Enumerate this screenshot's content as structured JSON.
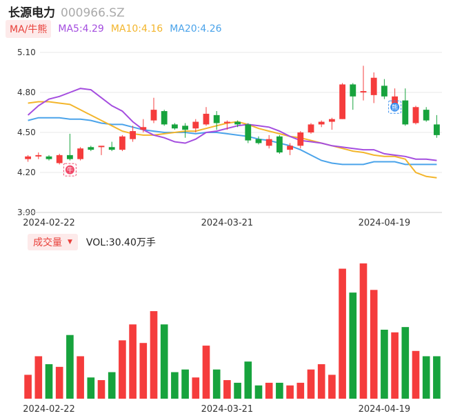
{
  "header": {
    "stock_name": "长源电力",
    "stock_code": "000966.SZ"
  },
  "ma_legend": {
    "tag": "MA/牛熊",
    "items": [
      {
        "label": "MA5:4.29",
        "color": "#a44ddf"
      },
      {
        "label": "MA10:4.16",
        "color": "#f3b52b"
      },
      {
        "label": "MA20:4.26",
        "color": "#4aa3ea"
      }
    ]
  },
  "volume_legend": {
    "tag": "成交量",
    "value": "VOL:30.40万手"
  },
  "colors": {
    "up": "#f53c3c",
    "down": "#17a33d",
    "grid": "#e9e9e9",
    "axis_text": "#333333"
  },
  "markers": {
    "buy_icon": "牛",
    "sell_icon": "熊"
  },
  "chart_data": [
    {
      "type": "candlestick",
      "y_ticks": [
        "5.10",
        "4.80",
        "4.50",
        "4.20",
        "3.90"
      ],
      "ylim": [
        3.9,
        5.1
      ],
      "x_tick_labels": [
        {
          "label": "2024-02-22",
          "index": 2
        },
        {
          "label": "2024-03-21",
          "index": 19
        },
        {
          "label": "2024-04-19",
          "index": 34
        }
      ],
      "candles": [
        {
          "o": 4.3,
          "c": 4.32,
          "h": 4.33,
          "l": 4.28
        },
        {
          "o": 4.32,
          "c": 4.33,
          "h": 4.35,
          "l": 4.3
        },
        {
          "o": 4.32,
          "c": 4.3,
          "h": 4.33,
          "l": 4.29
        },
        {
          "o": 4.27,
          "c": 4.33,
          "h": 4.34,
          "l": 4.26
        },
        {
          "o": 4.33,
          "c": 4.3,
          "h": 4.49,
          "l": 4.29
        },
        {
          "o": 4.3,
          "c": 4.38,
          "h": 4.39,
          "l": 4.29
        },
        {
          "o": 4.39,
          "c": 4.37,
          "h": 4.4,
          "l": 4.36
        },
        {
          "o": 4.39,
          "c": 4.4,
          "h": 4.4,
          "l": 4.33
        },
        {
          "o": 4.39,
          "c": 4.37,
          "h": 4.43,
          "l": 4.36
        },
        {
          "o": 4.37,
          "c": 4.47,
          "h": 4.48,
          "l": 4.36
        },
        {
          "o": 4.45,
          "c": 4.51,
          "h": 4.55,
          "l": 4.43
        },
        {
          "o": 4.52,
          "c": 4.54,
          "h": 4.6,
          "l": 4.5
        },
        {
          "o": 4.59,
          "c": 4.67,
          "h": 4.76,
          "l": 4.57
        },
        {
          "o": 4.66,
          "c": 4.56,
          "h": 4.67,
          "l": 4.55
        },
        {
          "o": 4.56,
          "c": 4.53,
          "h": 4.57,
          "l": 4.52
        },
        {
          "o": 4.55,
          "c": 4.52,
          "h": 4.57,
          "l": 4.46
        },
        {
          "o": 4.53,
          "c": 4.58,
          "h": 4.6,
          "l": 4.5
        },
        {
          "o": 4.56,
          "c": 4.64,
          "h": 4.69,
          "l": 4.55
        },
        {
          "o": 4.63,
          "c": 4.57,
          "h": 4.66,
          "l": 4.52
        },
        {
          "o": 4.58,
          "c": 4.58,
          "h": 4.59,
          "l": 4.52
        },
        {
          "o": 4.58,
          "c": 4.56,
          "h": 4.59,
          "l": 4.54
        },
        {
          "o": 4.56,
          "c": 4.44,
          "h": 4.57,
          "l": 4.42
        },
        {
          "o": 4.45,
          "c": 4.42,
          "h": 4.47,
          "l": 4.41
        },
        {
          "o": 4.4,
          "c": 4.45,
          "h": 4.48,
          "l": 4.38
        },
        {
          "o": 4.47,
          "c": 4.35,
          "h": 4.48,
          "l": 4.34
        },
        {
          "o": 4.37,
          "c": 4.4,
          "h": 4.42,
          "l": 4.33
        },
        {
          "o": 4.4,
          "c": 4.5,
          "h": 4.51,
          "l": 4.38
        },
        {
          "o": 4.5,
          "c": 4.56,
          "h": 4.57,
          "l": 4.49
        },
        {
          "o": 4.56,
          "c": 4.58,
          "h": 4.59,
          "l": 4.54
        },
        {
          "o": 4.58,
          "c": 4.6,
          "h": 4.61,
          "l": 4.52
        },
        {
          "o": 4.6,
          "c": 4.86,
          "h": 4.87,
          "l": 4.6
        },
        {
          "o": 4.86,
          "c": 4.77,
          "h": 4.87,
          "l": 4.67
        },
        {
          "o": 4.8,
          "c": 4.81,
          "h": 5.0,
          "l": 4.74
        },
        {
          "o": 4.78,
          "c": 4.91,
          "h": 4.95,
          "l": 4.72
        },
        {
          "o": 4.85,
          "c": 4.77,
          "h": 4.9,
          "l": 4.75
        },
        {
          "o": 4.71,
          "c": 4.77,
          "h": 4.83,
          "l": 4.68
        },
        {
          "o": 4.74,
          "c": 4.56,
          "h": 4.83,
          "l": 4.55
        },
        {
          "o": 4.57,
          "c": 4.69,
          "h": 4.7,
          "l": 4.56
        },
        {
          "o": 4.67,
          "c": 4.59,
          "h": 4.69,
          "l": 4.58
        },
        {
          "o": 4.56,
          "c": 4.48,
          "h": 4.63,
          "l": 4.46
        }
      ],
      "ma5": [
        4.63,
        4.7,
        4.75,
        4.77,
        4.8,
        4.83,
        4.82,
        4.76,
        4.7,
        4.66,
        4.58,
        4.52,
        4.48,
        4.46,
        4.43,
        4.42,
        4.45,
        4.5,
        4.51,
        4.53,
        4.55,
        4.56,
        4.55,
        4.54,
        4.51,
        4.47,
        4.44,
        4.43,
        4.42,
        4.4,
        4.39,
        4.38,
        4.37,
        4.37,
        4.34,
        4.33,
        4.32,
        4.3,
        4.3,
        4.29
      ],
      "ma10": [
        4.72,
        4.73,
        4.73,
        4.72,
        4.71,
        4.67,
        4.63,
        4.59,
        4.55,
        4.51,
        4.49,
        4.48,
        4.48,
        4.49,
        4.5,
        4.51,
        4.51,
        4.53,
        4.55,
        4.57,
        4.58,
        4.56,
        4.53,
        4.51,
        4.49,
        4.47,
        4.46,
        4.44,
        4.42,
        4.4,
        4.38,
        4.36,
        4.35,
        4.33,
        4.32,
        4.32,
        4.3,
        4.2,
        4.17,
        4.16
      ],
      "ma20": [
        4.59,
        4.61,
        4.61,
        4.61,
        4.6,
        4.6,
        4.59,
        4.57,
        4.56,
        4.56,
        4.54,
        4.52,
        4.51,
        4.5,
        4.5,
        4.5,
        4.49,
        4.5,
        4.5,
        4.49,
        4.48,
        4.47,
        4.45,
        4.44,
        4.42,
        4.4,
        4.37,
        4.33,
        4.29,
        4.27,
        4.26,
        4.26,
        4.26,
        4.28,
        4.28,
        4.28,
        4.26,
        4.26,
        4.26,
        4.26
      ],
      "signals": [
        {
          "type": "buy",
          "index": 4,
          "price": 4.22
        },
        {
          "type": "sell",
          "index": 35,
          "price": 4.69
        }
      ]
    },
    {
      "type": "bar",
      "volumes": [
        9,
        16,
        13,
        12,
        24,
        16,
        8,
        7,
        10,
        22,
        28,
        21,
        33,
        28,
        10,
        11,
        8,
        20,
        11,
        7,
        6,
        14,
        5,
        6,
        6,
        5,
        6,
        11,
        13,
        9,
        49,
        40,
        51,
        41,
        26,
        25,
        27,
        18,
        16,
        16
      ]
    }
  ]
}
